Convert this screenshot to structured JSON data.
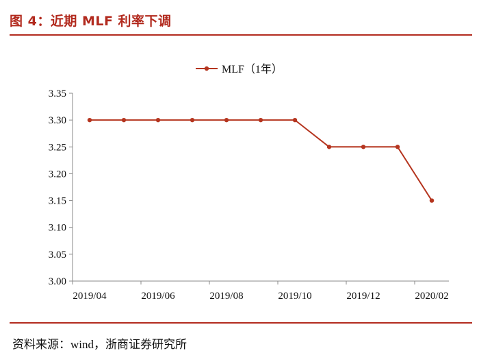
{
  "figure": {
    "title": "图 4：近期 MLF 利率下调",
    "source": "资料来源：wind，浙商证券研究所"
  },
  "colors": {
    "accent": "#b22a1e",
    "line": "#b5351f",
    "axis": "#8a8a8a"
  },
  "chart_data": {
    "type": "line",
    "title": "",
    "xlabel": "",
    "ylabel": "",
    "categories": [
      "2019/04",
      "2019/05",
      "2019/06",
      "2019/07",
      "2019/08",
      "2019/09",
      "2019/10",
      "2019/11",
      "2019/12",
      "2020/01",
      "2020/02"
    ],
    "x_tick_labels": [
      "2019/04",
      "2019/06",
      "2019/08",
      "2019/10",
      "2019/12",
      "2020/02"
    ],
    "y_tick_labels": [
      "3.35",
      "3.30",
      "3.25",
      "3.20",
      "3.15",
      "3.10",
      "3.05",
      "3.00"
    ],
    "ylim": [
      3.0,
      3.35
    ],
    "grid": false,
    "legend_position": "top-center",
    "series": [
      {
        "name": "MLF（1年）",
        "values": [
          3.3,
          3.3,
          3.3,
          3.3,
          3.3,
          3.3,
          3.3,
          3.25,
          3.25,
          3.25,
          3.15
        ]
      }
    ]
  }
}
